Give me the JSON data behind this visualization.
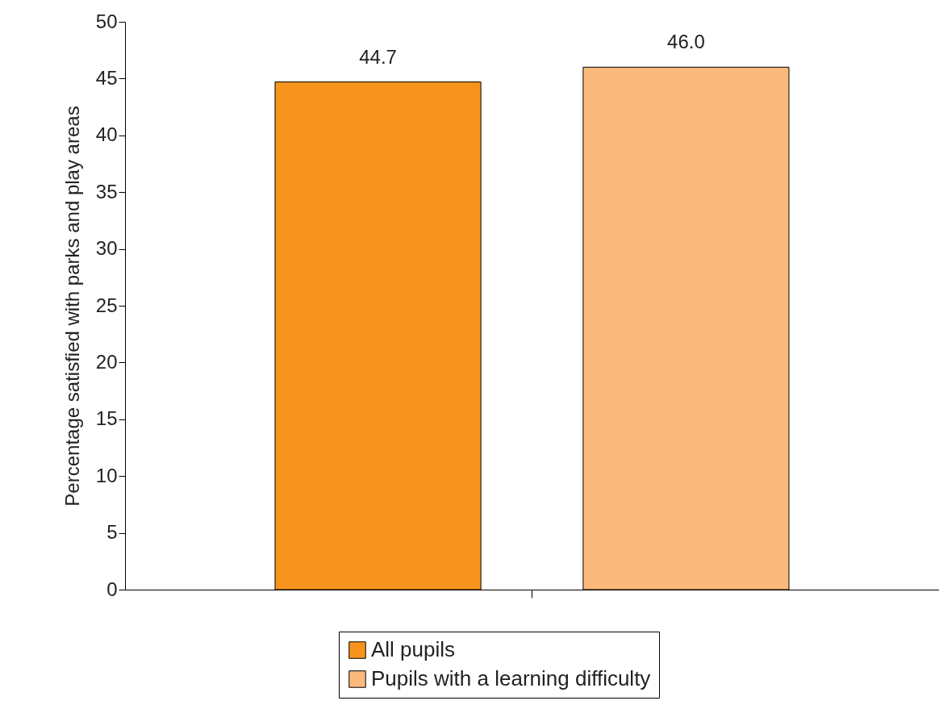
{
  "chart_data": {
    "type": "bar",
    "ylabel": "Percentage satisfied with parks and play areas",
    "categories": [
      null
    ],
    "series": [
      {
        "name": "All pupils",
        "color": "#f7941e",
        "values": [
          44.7
        ],
        "value_labels": [
          "44.7"
        ]
      },
      {
        "name": "Pupils with a learning difficulty",
        "color": "#fbb97b",
        "values": [
          46.0
        ],
        "value_labels": [
          "46.0"
        ]
      }
    ],
    "ylim": [
      0,
      50
    ],
    "yticks": [
      0,
      5,
      10,
      15,
      20,
      25,
      30,
      35,
      40,
      45,
      50
    ],
    "grid": false,
    "legend": "bottom"
  }
}
